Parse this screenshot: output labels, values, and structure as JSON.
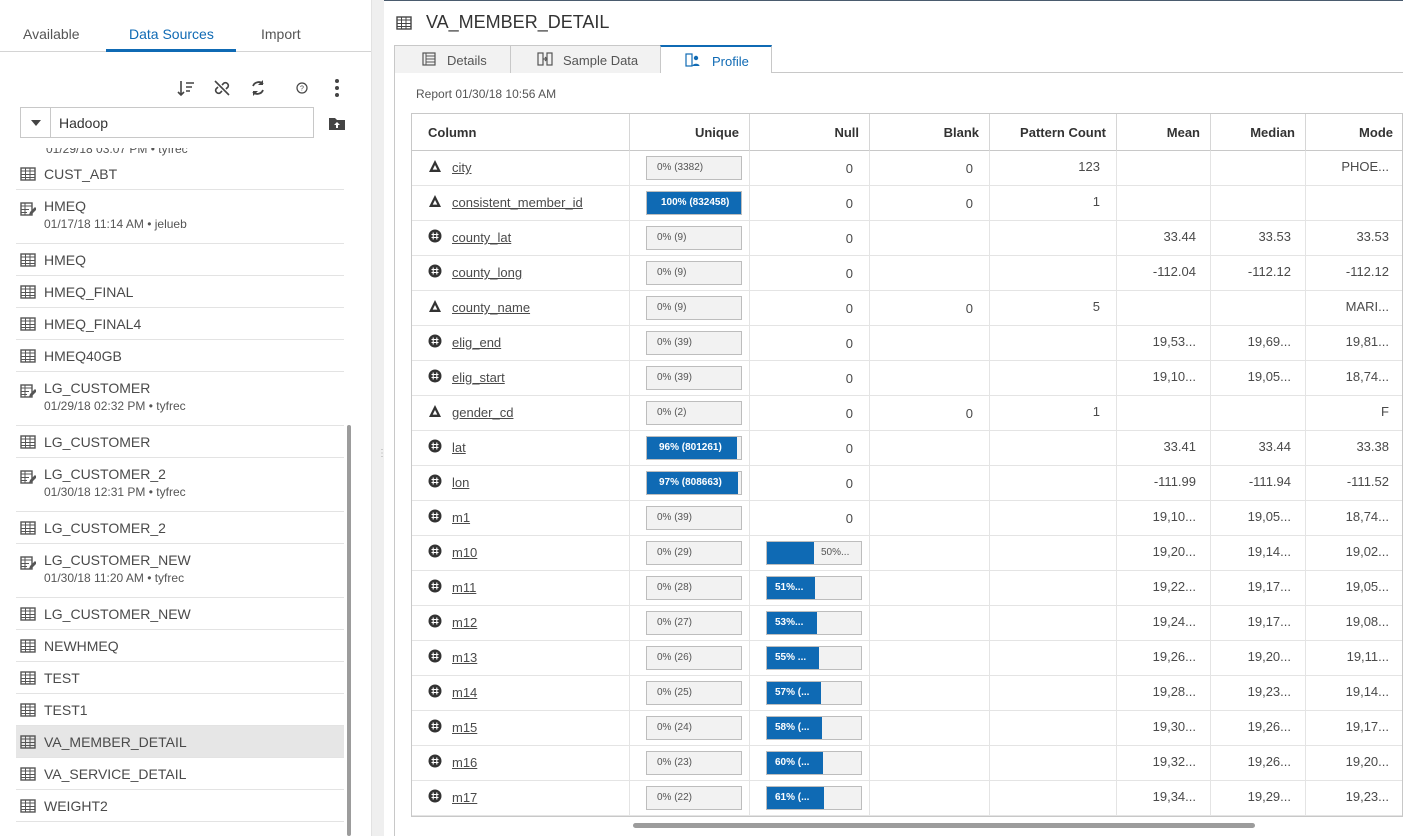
{
  "left_tabs": [
    "Available",
    "Data Sources",
    "Import"
  ],
  "active_left_tab": "Data Sources",
  "toolbar_icons": [
    "sort-icon",
    "disconnect-icon",
    "refresh-icon",
    "help-icon",
    "more-icon"
  ],
  "source": {
    "value": "Hadoop"
  },
  "list_clipped_text": "01/29/18 03:07 PM • tyfrec",
  "tables": [
    {
      "name": "CUST_ABT",
      "icon": "table-icon",
      "sub": ""
    },
    {
      "name": "HMEQ",
      "icon": "table-edit-icon",
      "sub": "01/17/18 11:14 AM • jelueb"
    },
    {
      "name": "HMEQ",
      "icon": "table-icon",
      "sub": ""
    },
    {
      "name": "HMEQ_FINAL",
      "icon": "table-icon",
      "sub": ""
    },
    {
      "name": "HMEQ_FINAL4",
      "icon": "table-icon",
      "sub": ""
    },
    {
      "name": "HMEQ40GB",
      "icon": "table-icon",
      "sub": ""
    },
    {
      "name": "LG_CUSTOMER",
      "icon": "table-edit-icon",
      "sub": "01/29/18 02:32 PM • tyfrec"
    },
    {
      "name": "LG_CUSTOMER",
      "icon": "table-icon",
      "sub": ""
    },
    {
      "name": "LG_CUSTOMER_2",
      "icon": "table-edit-icon",
      "sub": "01/30/18 12:31 PM • tyfrec"
    },
    {
      "name": "LG_CUSTOMER_2",
      "icon": "table-icon",
      "sub": ""
    },
    {
      "name": "LG_CUSTOMER_NEW",
      "icon": "table-edit-icon",
      "sub": "01/30/18 11:20 AM • tyfrec"
    },
    {
      "name": "LG_CUSTOMER_NEW",
      "icon": "table-icon",
      "sub": ""
    },
    {
      "name": "NEWHMEQ",
      "icon": "table-icon",
      "sub": ""
    },
    {
      "name": "TEST",
      "icon": "table-icon",
      "sub": ""
    },
    {
      "name": "TEST1",
      "icon": "table-icon",
      "sub": ""
    },
    {
      "name": "VA_MEMBER_DETAIL",
      "icon": "table-icon",
      "sub": "",
      "selected": true
    },
    {
      "name": "VA_SERVICE_DETAIL",
      "icon": "table-icon",
      "sub": ""
    },
    {
      "name": "WEIGHT2",
      "icon": "table-icon",
      "sub": ""
    }
  ],
  "title": "VA_MEMBER_DETAIL",
  "tabs": [
    {
      "label": "Details",
      "icon": "details-icon"
    },
    {
      "label": "Sample Data",
      "icon": "sample-data-icon"
    },
    {
      "label": "Profile",
      "icon": "profile-icon",
      "active": true
    }
  ],
  "report_timestamp": "Report 01/30/18 10:56 AM",
  "columns": [
    "Column",
    "Unique",
    "Null",
    "Blank",
    "Pattern Count",
    "Mean",
    "Median",
    "Mode"
  ],
  "rows": [
    {
      "name": "city",
      "type": "char",
      "unique": "0% (3382)",
      "unique_pct": 0,
      "null": "0",
      "null_pct": null,
      "blank": "0",
      "pattern": "123",
      "mean": "",
      "median": "",
      "mode": "PHOE..."
    },
    {
      "name": "consistent_member_id",
      "type": "char",
      "unique": "100% (832458)",
      "unique_pct": 100,
      "null": "0",
      "null_pct": null,
      "blank": "0",
      "pattern": "1",
      "mean": "",
      "median": "",
      "mode": ""
    },
    {
      "name": "county_lat",
      "type": "num",
      "unique": "0% (9)",
      "unique_pct": 0,
      "null": "0",
      "null_pct": null,
      "blank": "",
      "pattern": "",
      "mean": "33.44",
      "median": "33.53",
      "mode": "33.53"
    },
    {
      "name": "county_long",
      "type": "num",
      "unique": "0% (9)",
      "unique_pct": 0,
      "null": "0",
      "null_pct": null,
      "blank": "",
      "pattern": "",
      "mean": "-112.04",
      "median": "-112.12",
      "mode": "-112.12"
    },
    {
      "name": "county_name",
      "type": "char",
      "unique": "0% (9)",
      "unique_pct": 0,
      "null": "0",
      "null_pct": null,
      "blank": "0",
      "pattern": "5",
      "mean": "",
      "median": "",
      "mode": "MARI..."
    },
    {
      "name": "elig_end",
      "type": "num",
      "unique": "0% (39)",
      "unique_pct": 0,
      "null": "0",
      "null_pct": null,
      "blank": "",
      "pattern": "",
      "mean": "19,53...",
      "median": "19,69...",
      "mode": "19,81..."
    },
    {
      "name": "elig_start",
      "type": "num",
      "unique": "0% (39)",
      "unique_pct": 0,
      "null": "0",
      "null_pct": null,
      "blank": "",
      "pattern": "",
      "mean": "19,10...",
      "median": "19,05...",
      "mode": "18,74..."
    },
    {
      "name": "gender_cd",
      "type": "char",
      "unique": "0% (2)",
      "unique_pct": 0,
      "null": "0",
      "null_pct": null,
      "blank": "0",
      "pattern": "1",
      "mean": "",
      "median": "",
      "mode": "F"
    },
    {
      "name": "lat",
      "type": "num",
      "unique": "96% (801261)",
      "unique_pct": 96,
      "null": "0",
      "null_pct": null,
      "blank": "",
      "pattern": "",
      "mean": "33.41",
      "median": "33.44",
      "mode": "33.38"
    },
    {
      "name": "lon",
      "type": "num",
      "unique": "97% (808663)",
      "unique_pct": 97,
      "null": "0",
      "null_pct": null,
      "blank": "",
      "pattern": "",
      "mean": "-111.99",
      "median": "-111.94",
      "mode": "-111.52"
    },
    {
      "name": "m1",
      "type": "num",
      "unique": "0% (39)",
      "unique_pct": 0,
      "null": "0",
      "null_pct": null,
      "blank": "",
      "pattern": "",
      "mean": "19,10...",
      "median": "19,05...",
      "mode": "18,74..."
    },
    {
      "name": "m10",
      "type": "num",
      "unique": "0% (29)",
      "unique_pct": 0,
      "null": "50%...",
      "null_pct": 50,
      "blank": "",
      "pattern": "",
      "mean": "19,20...",
      "median": "19,14...",
      "mode": "19,02..."
    },
    {
      "name": "m11",
      "type": "num",
      "unique": "0% (28)",
      "unique_pct": 0,
      "null": "51%...",
      "null_pct": 51,
      "blank": "",
      "pattern": "",
      "mean": "19,22...",
      "median": "19,17...",
      "mode": "19,05..."
    },
    {
      "name": "m12",
      "type": "num",
      "unique": "0% (27)",
      "unique_pct": 0,
      "null": "53%...",
      "null_pct": 53,
      "blank": "",
      "pattern": "",
      "mean": "19,24...",
      "median": "19,17...",
      "mode": "19,08..."
    },
    {
      "name": "m13",
      "type": "num",
      "unique": "0% (26)",
      "unique_pct": 0,
      "null": "55% ...",
      "null_pct": 55,
      "blank": "",
      "pattern": "",
      "mean": "19,26...",
      "median": "19,20...",
      "mode": "19,11..."
    },
    {
      "name": "m14",
      "type": "num",
      "unique": "0% (25)",
      "unique_pct": 0,
      "null": "57% (...",
      "null_pct": 57,
      "blank": "",
      "pattern": "",
      "mean": "19,28...",
      "median": "19,23...",
      "mode": "19,14..."
    },
    {
      "name": "m15",
      "type": "num",
      "unique": "0% (24)",
      "unique_pct": 0,
      "null": "58% (...",
      "null_pct": 58,
      "blank": "",
      "pattern": "",
      "mean": "19,30...",
      "median": "19,26...",
      "mode": "19,17..."
    },
    {
      "name": "m16",
      "type": "num",
      "unique": "0% (23)",
      "unique_pct": 0,
      "null": "60% (...",
      "null_pct": 60,
      "blank": "",
      "pattern": "",
      "mean": "19,32...",
      "median": "19,26...",
      "mode": "19,20..."
    },
    {
      "name": "m17",
      "type": "num",
      "unique": "0% (22)",
      "unique_pct": 0,
      "null": "61% (...",
      "null_pct": 61,
      "blank": "",
      "pattern": "",
      "mean": "19,34...",
      "median": "19,29...",
      "mode": "19,23..."
    }
  ],
  "colors": {
    "accent": "#0f6ab4",
    "bar_bg": "#f2f2f2",
    "selected_row": "#e6e6e6"
  }
}
